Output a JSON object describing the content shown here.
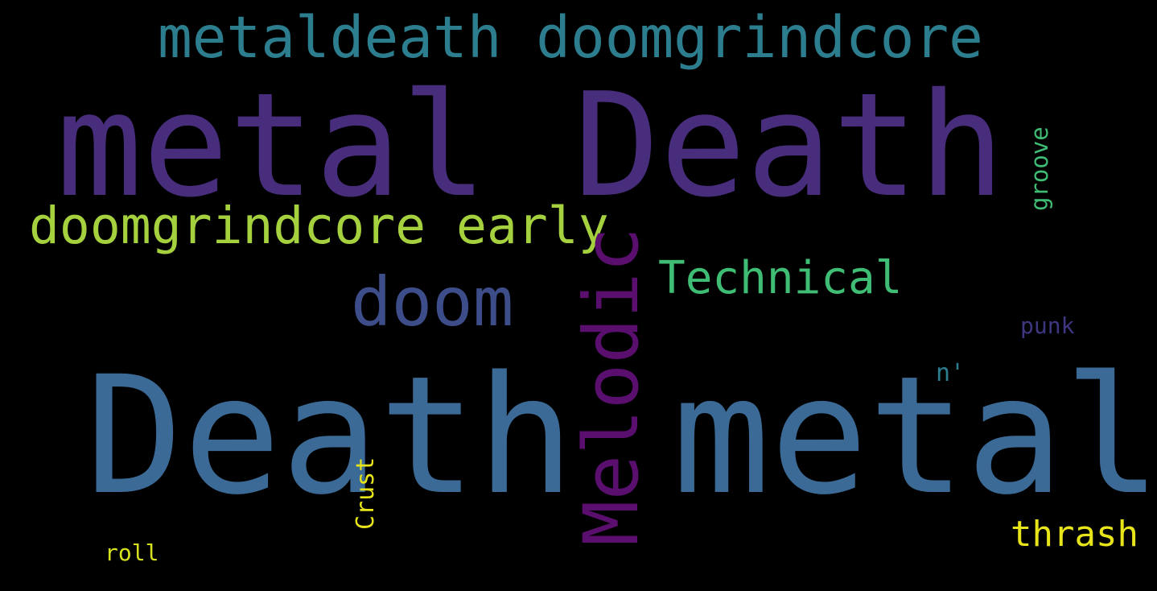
{
  "cloud": {
    "background": "#000000",
    "words": {
      "metal_death": {
        "text": "metal Death",
        "color": "#472d7b"
      },
      "death_metal": {
        "text": "Death metal",
        "color": "#3b6a96"
      },
      "metaldeath_doomgrindcore": {
        "text": "metaldeath doomgrindcore",
        "color": "#2c7e8e"
      },
      "doomgrindcore_early": {
        "text": "doomgrindcore early",
        "color": "#a5d13f"
      },
      "doom": {
        "text": "doom",
        "color": "#3d4d8a"
      },
      "melodic": {
        "text": "Melodic",
        "color": "#5a0f6e"
      },
      "technical": {
        "text": "Technical",
        "color": "#3fbd74"
      },
      "groove": {
        "text": "groove",
        "color": "#3fbd74"
      },
      "punk": {
        "text": "punk",
        "color": "#3d3680"
      },
      "n": {
        "text": "n'",
        "color": "#2c7e8e"
      },
      "crust": {
        "text": "Crust",
        "color": "#e7e419"
      },
      "thrash": {
        "text": "thrash",
        "color": "#e7e419"
      },
      "roll": {
        "text": "roll",
        "color": "#d7e21f"
      }
    }
  }
}
